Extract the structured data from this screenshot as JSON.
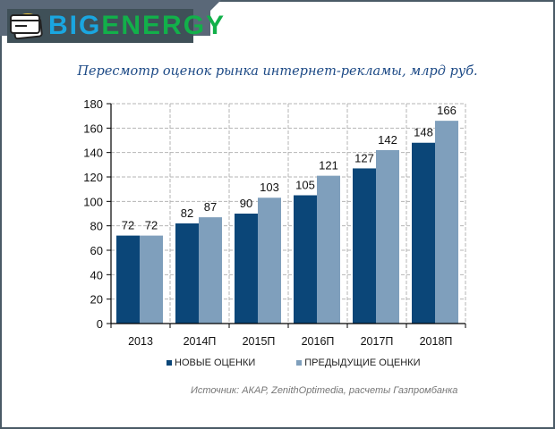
{
  "header": {
    "logo_part1": "BIG",
    "logo_part2": "ENERGY",
    "logo_icon": "credit-card-icon"
  },
  "title": "Пересмотр оценок рынка интернет-рекламы, млрд руб.",
  "legend": {
    "new": "НОВЫЕ ОЦЕНКИ",
    "prev": "ПРЕДЫДУЩИЕ ОЦЕНКИ"
  },
  "source": "Источник: АКАР, ZenithOptimedia, расчеты Газпромбанка",
  "colors": {
    "new": "#0b4678",
    "prev": "#7f9fbc",
    "title": "#1d4a86",
    "frame": "#4a5a66"
  },
  "chart_data": {
    "type": "bar",
    "title": "Пересмотр оценок рынка интернет-рекламы, млрд руб.",
    "xlabel": "",
    "ylabel": "",
    "categories": [
      "2013",
      "2014П",
      "2015П",
      "2016П",
      "2017П",
      "2018П"
    ],
    "series": [
      {
        "name": "НОВЫЕ ОЦЕНКИ",
        "color": "#0b4678",
        "values": [
          72,
          82,
          90,
          105,
          127,
          148
        ]
      },
      {
        "name": "ПРЕДЫДУЩИЕ ОЦЕНКИ",
        "color": "#7f9fbc",
        "values": [
          72,
          87,
          103,
          121,
          142,
          166
        ]
      }
    ],
    "ylim": [
      0,
      180
    ],
    "yticks": [
      0,
      20,
      40,
      60,
      80,
      100,
      120,
      140,
      160,
      180
    ],
    "grid": true,
    "legend_position": "bottom",
    "data_labels": true,
    "annotation": "Источник: АКАР, ZenithOptimedia, расчеты Газпромбанка"
  }
}
